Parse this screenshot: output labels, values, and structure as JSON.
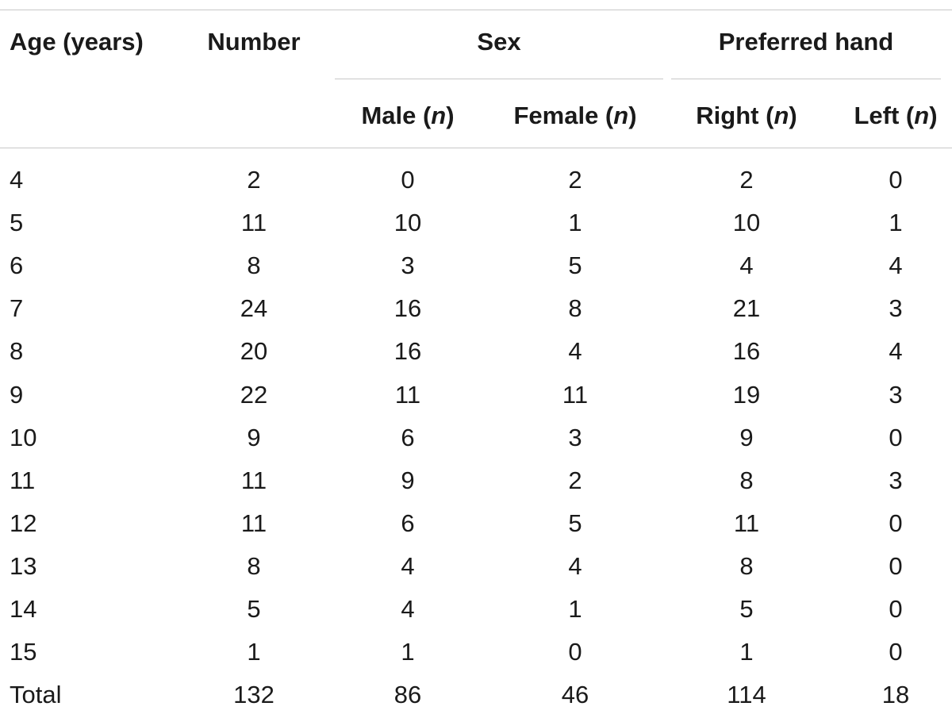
{
  "table": {
    "headers": {
      "age": "Age (years)",
      "number": "Number",
      "sex": "Sex",
      "preferred_hand": "Preferred hand",
      "male": "Male",
      "female": "Female",
      "right": "Right",
      "left": "Left",
      "n": "n"
    },
    "rows": [
      {
        "age": "4",
        "number": "2",
        "male": "0",
        "female": "2",
        "right": "2",
        "left": "0"
      },
      {
        "age": "5",
        "number": "11",
        "male": "10",
        "female": "1",
        "right": "10",
        "left": "1"
      },
      {
        "age": "6",
        "number": "8",
        "male": "3",
        "female": "5",
        "right": "4",
        "left": "4"
      },
      {
        "age": "7",
        "number": "24",
        "male": "16",
        "female": "8",
        "right": "21",
        "left": "3"
      },
      {
        "age": "8",
        "number": "20",
        "male": "16",
        "female": "4",
        "right": "16",
        "left": "4"
      },
      {
        "age": "9",
        "number": "22",
        "male": "11",
        "female": "11",
        "right": "19",
        "left": "3"
      },
      {
        "age": "10",
        "number": "9",
        "male": "6",
        "female": "3",
        "right": "9",
        "left": "0"
      },
      {
        "age": "11",
        "number": "11",
        "male": "9",
        "female": "2",
        "right": "8",
        "left": "3"
      },
      {
        "age": "12",
        "number": "11",
        "male": "6",
        "female": "5",
        "right": "11",
        "left": "0"
      },
      {
        "age": "13",
        "number": "8",
        "male": "4",
        "female": "4",
        "right": "8",
        "left": "0"
      },
      {
        "age": "14",
        "number": "5",
        "male": "4",
        "female": "1",
        "right": "5",
        "left": "0"
      },
      {
        "age": "15",
        "number": "1",
        "male": "1",
        "female": "0",
        "right": "1",
        "left": "0"
      },
      {
        "age": "Total",
        "number": "132",
        "male": "86",
        "female": "46",
        "right": "114",
        "left": "18"
      }
    ]
  },
  "colors": {
    "text": "#1a1a1a",
    "rule": "#c8c8c8"
  }
}
